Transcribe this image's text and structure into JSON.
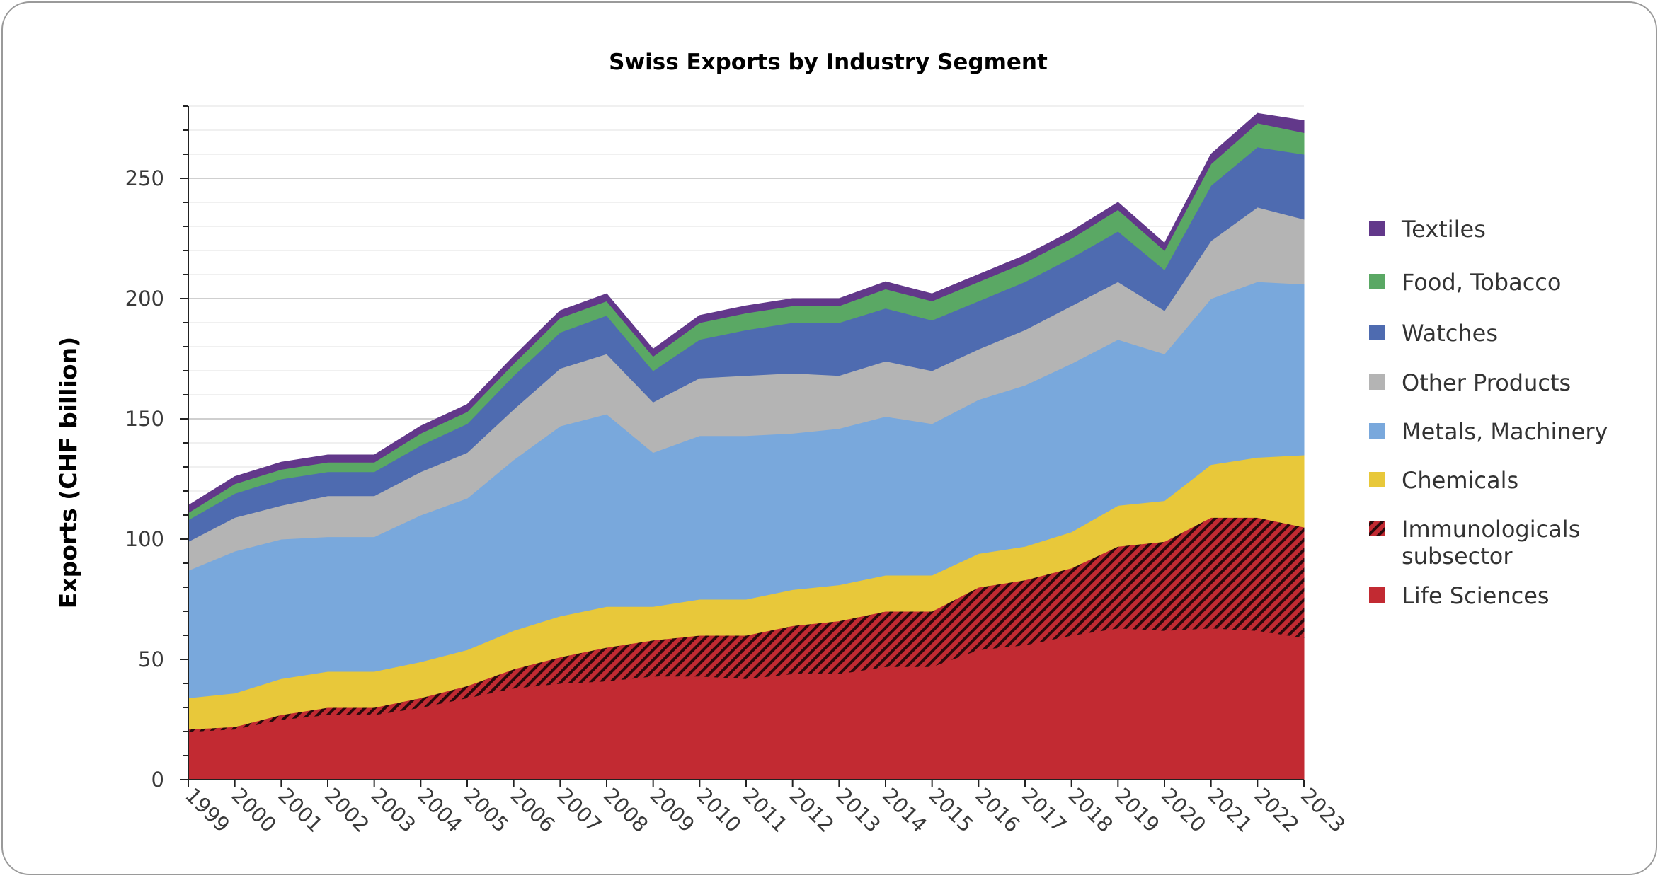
{
  "chart_data": {
    "type": "area",
    "stacked": true,
    "title": "Swiss Exports by Industry Segment",
    "ylabel": "Exports (CHF billion)",
    "xlabel": "",
    "ylim": [
      0,
      280
    ],
    "yticks": [
      0,
      50,
      100,
      150,
      200,
      250
    ],
    "grid": true,
    "legend_position": "right",
    "x": [
      "1999",
      "2000",
      "2001",
      "2002",
      "2003",
      "2004",
      "2005",
      "2006",
      "2007",
      "2008",
      "2009",
      "2010",
      "2011",
      "2012",
      "2013",
      "2014",
      "2015",
      "2016",
      "2017",
      "2018",
      "2019",
      "2020",
      "2021",
      "2022",
      "2023"
    ],
    "series": [
      {
        "name": "Life Sciences",
        "color": "#c22a32",
        "values": [
          20,
          21,
          25,
          27,
          27,
          30,
          34,
          38,
          40,
          41,
          43,
          43,
          42,
          44,
          44,
          47,
          47,
          54,
          56,
          60,
          63,
          62,
          63,
          62,
          59
        ]
      },
      {
        "name": "Immunologicals subsector",
        "color": "#c22a32",
        "pattern": "hatched",
        "values": [
          1,
          1,
          2,
          3,
          3,
          4,
          5,
          8,
          11,
          14,
          15,
          17,
          18,
          20,
          22,
          23,
          23,
          26,
          27,
          28,
          34,
          37,
          46,
          47,
          46
        ]
      },
      {
        "name": "Chemicals",
        "color": "#e8c83a",
        "values": [
          13,
          14,
          15,
          15,
          15,
          15,
          15,
          16,
          17,
          17,
          14,
          15,
          15,
          15,
          15,
          15,
          15,
          14,
          14,
          15,
          17,
          17,
          22,
          25,
          30
        ]
      },
      {
        "name": "Metals, Machinery",
        "color": "#79a8dc",
        "values": [
          53,
          59,
          58,
          56,
          56,
          61,
          63,
          71,
          79,
          80,
          64,
          68,
          68,
          65,
          65,
          66,
          63,
          64,
          67,
          70,
          69,
          61,
          69,
          73,
          71
        ]
      },
      {
        "name": "Other Products",
        "color": "#b4b4b4",
        "values": [
          12,
          14,
          14,
          17,
          17,
          18,
          19,
          21,
          24,
          25,
          21,
          24,
          25,
          25,
          22,
          23,
          22,
          21,
          23,
          24,
          24,
          18,
          24,
          31,
          27
        ]
      },
      {
        "name": "Watches",
        "color": "#4e6bb0",
        "values": [
          9,
          10,
          11,
          10,
          10,
          11,
          12,
          14,
          15,
          16,
          13,
          16,
          19,
          21,
          22,
          22,
          21,
          20,
          20,
          20,
          21,
          17,
          23,
          25,
          27
        ]
      },
      {
        "name": "Food, Tobacco",
        "color": "#5aa864",
        "values": [
          3,
          4,
          4,
          4,
          4,
          5,
          5,
          5,
          6,
          6,
          6,
          7,
          7,
          7,
          7,
          8,
          8,
          8,
          8,
          8,
          9,
          8,
          9,
          10,
          9
        ]
      },
      {
        "name": "Textiles",
        "color": "#62388a",
        "values": [
          3,
          3,
          3,
          3,
          3,
          3,
          3,
          3,
          3,
          3,
          3,
          3,
          3,
          3,
          3,
          3,
          3,
          3,
          3,
          3,
          3,
          3,
          4,
          4,
          5
        ]
      }
    ],
    "legend_order": [
      "Textiles",
      "Food, Tobacco",
      "Watches",
      "Other Products",
      "Metals, Machinery",
      "Chemicals",
      "Immunologicals subsector",
      "Life Sciences"
    ]
  }
}
